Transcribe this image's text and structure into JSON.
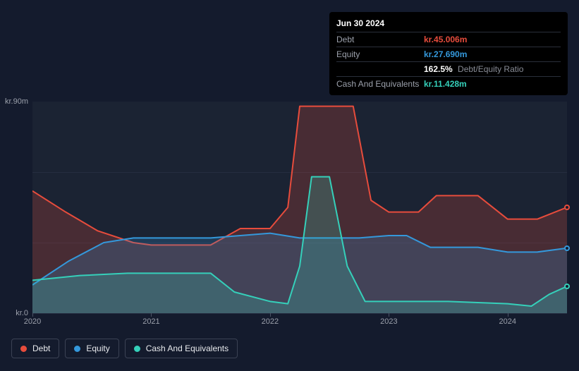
{
  "tooltip": {
    "date": "Jun 30 2024",
    "rows": [
      {
        "label": "Debt",
        "value": "kr.45.006m",
        "color": "#e74c3c"
      },
      {
        "label": "Equity",
        "value": "kr.27.690m",
        "color": "#3498db"
      },
      {
        "label": "",
        "value": "162.5%",
        "extra": "Debt/Equity Ratio",
        "color": "#ffffff"
      },
      {
        "label": "Cash And Equivalents",
        "value": "kr.11.428m",
        "color": "#35d0ba"
      }
    ]
  },
  "chart": {
    "type": "area",
    "background_color": "#1b2333",
    "grid_color": "#252d40",
    "ylim": [
      0,
      90
    ],
    "y_ticks": [
      {
        "v": 90,
        "label": "kr.90m"
      },
      {
        "v": 0,
        "label": "kr.0"
      }
    ],
    "x_domain": [
      2020,
      2024.5
    ],
    "x_ticks": [
      {
        "v": 2020,
        "label": "2020"
      },
      {
        "v": 2021,
        "label": "2021"
      },
      {
        "v": 2022,
        "label": "2022"
      },
      {
        "v": 2023,
        "label": "2023"
      },
      {
        "v": 2024,
        "label": "2024"
      }
    ],
    "series": [
      {
        "name": "Debt",
        "color": "#e74c3c",
        "fill_opacity": 0.22,
        "line_width": 2,
        "points": [
          [
            2020.0,
            52
          ],
          [
            2020.28,
            43
          ],
          [
            2020.55,
            35
          ],
          [
            2020.85,
            30
          ],
          [
            2021.0,
            29
          ],
          [
            2021.25,
            29
          ],
          [
            2021.5,
            29
          ],
          [
            2021.75,
            36
          ],
          [
            2022.0,
            36
          ],
          [
            2022.15,
            45
          ],
          [
            2022.25,
            88
          ],
          [
            2022.5,
            88
          ],
          [
            2022.7,
            88
          ],
          [
            2022.85,
            48
          ],
          [
            2023.0,
            43
          ],
          [
            2023.25,
            43
          ],
          [
            2023.4,
            50
          ],
          [
            2023.75,
            50
          ],
          [
            2024.0,
            40
          ],
          [
            2024.25,
            40
          ],
          [
            2024.5,
            45.006
          ]
        ]
      },
      {
        "name": "Equity",
        "color": "#3498db",
        "fill_opacity": 0.22,
        "line_width": 2,
        "points": [
          [
            2020.0,
            12
          ],
          [
            2020.3,
            22
          ],
          [
            2020.6,
            30
          ],
          [
            2020.85,
            32
          ],
          [
            2021.0,
            32
          ],
          [
            2021.5,
            32
          ],
          [
            2021.75,
            33
          ],
          [
            2022.0,
            34
          ],
          [
            2022.25,
            32
          ],
          [
            2022.5,
            32
          ],
          [
            2022.75,
            32
          ],
          [
            2023.0,
            33
          ],
          [
            2023.15,
            33
          ],
          [
            2023.35,
            28
          ],
          [
            2023.75,
            28
          ],
          [
            2024.0,
            26
          ],
          [
            2024.25,
            26
          ],
          [
            2024.5,
            27.69
          ]
        ]
      },
      {
        "name": "Cash And Equivalents",
        "color": "#35d0ba",
        "fill_opacity": 0.22,
        "line_width": 2,
        "points": [
          [
            2020.0,
            14
          ],
          [
            2020.4,
            16
          ],
          [
            2020.8,
            17
          ],
          [
            2021.0,
            17
          ],
          [
            2021.5,
            17
          ],
          [
            2021.7,
            9
          ],
          [
            2022.0,
            5
          ],
          [
            2022.15,
            4
          ],
          [
            2022.25,
            20
          ],
          [
            2022.35,
            58
          ],
          [
            2022.5,
            58
          ],
          [
            2022.65,
            20
          ],
          [
            2022.8,
            5
          ],
          [
            2023.0,
            5
          ],
          [
            2023.5,
            5
          ],
          [
            2024.0,
            4
          ],
          [
            2024.2,
            3
          ],
          [
            2024.35,
            8
          ],
          [
            2024.5,
            11.428
          ]
        ]
      }
    ]
  },
  "legend": [
    {
      "label": "Debt",
      "color": "#e74c3c"
    },
    {
      "label": "Equity",
      "color": "#3498db"
    },
    {
      "label": "Cash And Equivalents",
      "color": "#35d0ba"
    }
  ]
}
